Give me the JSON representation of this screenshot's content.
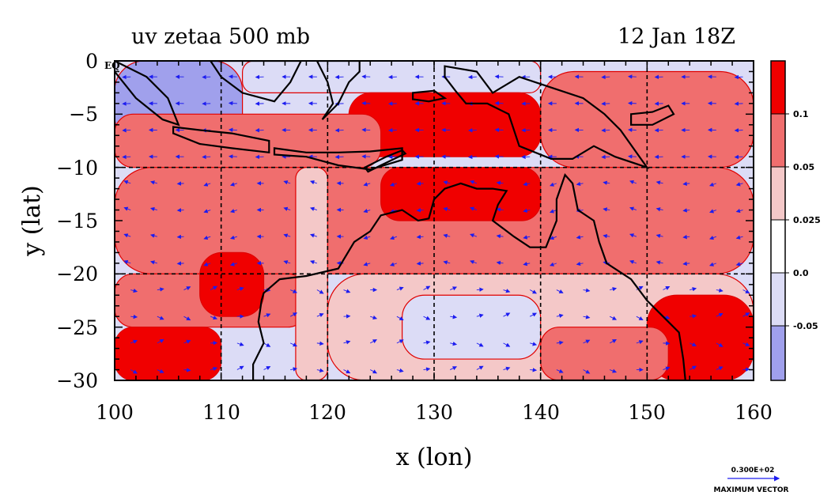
{
  "title_left": "uv zetaa 500 mb",
  "title_right": "12 Jan 18Z",
  "x_axis_label": "x (lon)",
  "y_axis_label": "y (lat)",
  "eq_label": "EQ",
  "x_ticks": [
    "100",
    "110",
    "120",
    "130",
    "140",
    "150",
    "160"
  ],
  "y_ticks": [
    "0",
    "−5",
    "−10",
    "−15",
    "−20",
    "−25",
    "−30"
  ],
  "colorbar": {
    "labels": [
      "0.1",
      "0.05",
      "0.025",
      "0.0",
      "-0.05"
    ],
    "colors": [
      "#f00000",
      "#f06e6e",
      "#f4c8c8",
      "#ffffff",
      "#dcdcf6",
      "#a0a0ec"
    ]
  },
  "vector_legend": {
    "value": "0.300E+02",
    "caption": "MAXIMUM VECTOR"
  },
  "colors": {
    "strong_positive": "#f00000",
    "positive": "#f06e6e",
    "weak_positive": "#f4c8c8",
    "weak_negative": "#dcdcf6",
    "negative": "#a0a0ec",
    "vectors": "#1c1cf0",
    "coast": "#000000",
    "contour": "#e00000"
  },
  "chart_data": {
    "type": "heatmap",
    "title": "uv zetaa 500 mb",
    "subtitle": "12 Jan 18Z",
    "xlabel": "x (lon)",
    "ylabel": "y (lat)",
    "xlim": [
      100,
      160
    ],
    "ylim": [
      -30,
      0
    ],
    "x_ticks": [
      100,
      110,
      120,
      130,
      140,
      150,
      160
    ],
    "y_ticks": [
      0,
      -5,
      -10,
      -15,
      -20,
      -25,
      -30
    ],
    "grid": true,
    "contour_levels": [
      -0.05,
      0.0,
      0.025,
      0.05,
      0.1
    ],
    "max_vector": 30.0,
    "regions": [
      {
        "lon": [
          100,
          112
        ],
        "lat": [
          -8,
          0
        ],
        "level": "negative"
      },
      {
        "lon": [
          112,
          140
        ],
        "lat": [
          -3,
          0
        ],
        "level": "weak_negative"
      },
      {
        "lon": [
          122,
          140
        ],
        "lat": [
          -9,
          -3
        ],
        "level": "strong_positive"
      },
      {
        "lon": [
          140,
          160
        ],
        "lat": [
          -10,
          -1
        ],
        "level": "positive"
      },
      {
        "lon": [
          100,
          125
        ],
        "lat": [
          -10,
          -5
        ],
        "level": "positive"
      },
      {
        "lon": [
          100,
          160
        ],
        "lat": [
          -20,
          -10
        ],
        "level": "positive"
      },
      {
        "lon": [
          125,
          140
        ],
        "lat": [
          -15,
          -10
        ],
        "level": "strong_positive"
      },
      {
        "lon": [
          100,
          118
        ],
        "lat": [
          -25,
          -20
        ],
        "level": "positive"
      },
      {
        "lon": [
          108,
          114
        ],
        "lat": [
          -24,
          -18
        ],
        "level": "strong_positive"
      },
      {
        "lon": [
          100,
          110
        ],
        "lat": [
          -30,
          -25
        ],
        "level": "strong_positive"
      },
      {
        "lon": [
          117,
          120
        ],
        "lat": [
          -30,
          -10
        ],
        "level": "weak_positive"
      },
      {
        "lon": [
          120,
          160
        ],
        "lat": [
          -30,
          -20
        ],
        "level": "weak_positive"
      },
      {
        "lon": [
          127,
          140
        ],
        "lat": [
          -28,
          -22
        ],
        "level": "weak_negative"
      },
      {
        "lon": [
          150,
          160
        ],
        "lat": [
          -30,
          -22
        ],
        "level": "strong_positive"
      },
      {
        "lon": [
          140,
          152
        ],
        "lat": [
          -30,
          -25
        ],
        "level": "positive"
      }
    ],
    "coastlines": [
      {
        "name": "Sumatra",
        "points": [
          [
            100,
            0
          ],
          [
            103,
            -1.5
          ],
          [
            105,
            -3.5
          ],
          [
            106,
            -6
          ],
          [
            104.5,
            -5.5
          ],
          [
            102,
            -3.5
          ],
          [
            100,
            -1
          ]
        ]
      },
      {
        "name": "Borneo",
        "points": [
          [
            109,
            0
          ],
          [
            110,
            -1.5
          ],
          [
            112,
            -3
          ],
          [
            115,
            -3.8
          ],
          [
            116.5,
            -2
          ],
          [
            117.5,
            0
          ]
        ]
      },
      {
        "name": "Java",
        "points": [
          [
            105.5,
            -6.2
          ],
          [
            108,
            -6.5
          ],
          [
            111,
            -6.8
          ],
          [
            114.5,
            -7.5
          ],
          [
            114.5,
            -8.6
          ],
          [
            111,
            -8.2
          ],
          [
            108,
            -7.8
          ],
          [
            105.5,
            -6.8
          ]
        ]
      },
      {
        "name": "Sulawesi",
        "points": [
          [
            119,
            0
          ],
          [
            120,
            -2
          ],
          [
            120.5,
            -4
          ],
          [
            119.5,
            -5.5
          ],
          [
            121,
            -4
          ],
          [
            122,
            -2
          ],
          [
            123,
            -1
          ],
          [
            123,
            0
          ]
        ]
      },
      {
        "name": "Lesser Sunda",
        "points": [
          [
            115,
            -8.2
          ],
          [
            118,
            -8.6
          ],
          [
            121,
            -8.6
          ],
          [
            124,
            -8.5
          ],
          [
            127,
            -8.2
          ],
          [
            127,
            -9.3
          ],
          [
            124,
            -10.2
          ],
          [
            121,
            -9.8
          ],
          [
            118,
            -9
          ],
          [
            115,
            -8.8
          ]
        ]
      },
      {
        "name": "Timor",
        "points": [
          [
            123.5,
            -10
          ],
          [
            125.5,
            -9
          ],
          [
            127,
            -8.4
          ],
          [
            127.3,
            -8.7
          ],
          [
            125,
            -9.8
          ],
          [
            123.8,
            -10.4
          ]
        ]
      },
      {
        "name": "Seram",
        "points": [
          [
            128,
            -3
          ],
          [
            130,
            -2.8
          ],
          [
            131,
            -3.5
          ],
          [
            129.5,
            -3.8
          ],
          [
            128,
            -3.6
          ]
        ]
      },
      {
        "name": "New Guinea",
        "points": [
          [
            131,
            -0.5
          ],
          [
            134,
            -1
          ],
          [
            135.5,
            -3
          ],
          [
            138,
            -1.5
          ],
          [
            141,
            -2.5
          ],
          [
            144,
            -3.5
          ],
          [
            146,
            -5
          ],
          [
            147.5,
            -6.5
          ],
          [
            150,
            -10
          ],
          [
            147,
            -9
          ],
          [
            145,
            -8
          ],
          [
            143,
            -9.2
          ],
          [
            141,
            -9.2
          ],
          [
            138,
            -8
          ],
          [
            137,
            -5
          ],
          [
            135,
            -4
          ],
          [
            133,
            -4
          ],
          [
            132,
            -2.8
          ],
          [
            131,
            -1.5
          ]
        ]
      },
      {
        "name": "New Britain",
        "points": [
          [
            148.5,
            -5
          ],
          [
            150.5,
            -4.8
          ],
          [
            152,
            -4.2
          ],
          [
            152.5,
            -5
          ],
          [
            150.5,
            -6
          ],
          [
            148.5,
            -6
          ]
        ]
      },
      {
        "name": "Australia",
        "points": [
          [
            114,
            -21.8
          ],
          [
            115.5,
            -20.5
          ],
          [
            118,
            -20.2
          ],
          [
            121,
            -19.5
          ],
          [
            122.5,
            -17
          ],
          [
            124,
            -16
          ],
          [
            125,
            -14.5
          ],
          [
            127,
            -14
          ],
          [
            128.5,
            -15
          ],
          [
            129.5,
            -14.8
          ],
          [
            130,
            -13
          ],
          [
            131,
            -12
          ],
          [
            132.5,
            -11.5
          ],
          [
            134,
            -12
          ],
          [
            135.5,
            -12
          ],
          [
            136.8,
            -12.2
          ],
          [
            136,
            -13.5
          ],
          [
            135.5,
            -15
          ],
          [
            137.5,
            -16.5
          ],
          [
            139,
            -17.5
          ],
          [
            140.5,
            -17.5
          ],
          [
            141.5,
            -15
          ],
          [
            141.5,
            -13
          ],
          [
            142.3,
            -10.7
          ],
          [
            143,
            -11.5
          ],
          [
            143.5,
            -14
          ],
          [
            145,
            -15
          ],
          [
            145.5,
            -17
          ],
          [
            146.2,
            -19
          ],
          [
            148.5,
            -20.5
          ],
          [
            150,
            -22.5
          ],
          [
            151.5,
            -24
          ],
          [
            153,
            -25.5
          ],
          [
            153.4,
            -28
          ],
          [
            153.6,
            -30
          ],
          [
            113,
            -30
          ],
          [
            113,
            -28.5
          ],
          [
            114,
            -26.5
          ],
          [
            113.5,
            -24.5
          ],
          [
            113.8,
            -22.5
          ]
        ]
      }
    ]
  }
}
